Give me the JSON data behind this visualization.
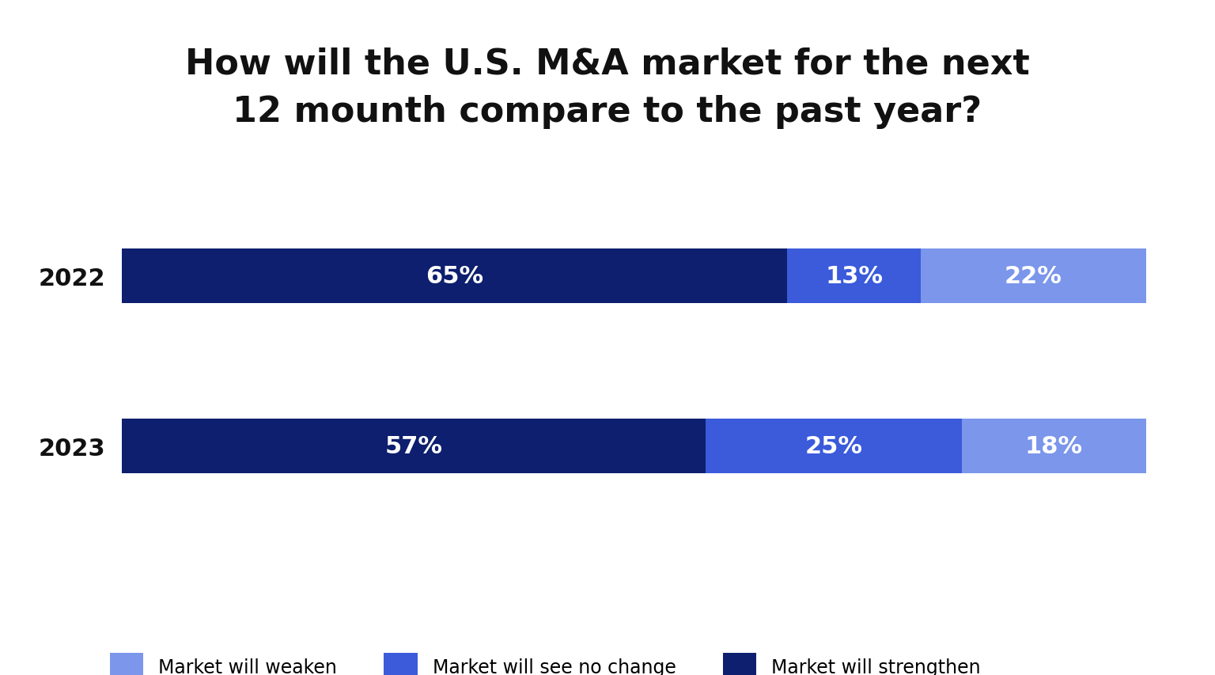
{
  "title_line1": "How will the U.S. M&A market for the next",
  "title_line2": "12 mounth compare to the past year?",
  "title_fontsize": 32,
  "title_fontweight": "bold",
  "years": [
    "2022",
    "2023"
  ],
  "segments": {
    "strengthen": [
      65,
      57
    ],
    "no_change": [
      13,
      25
    ],
    "weaken": [
      22,
      18
    ]
  },
  "colors": {
    "strengthen": "#0d1f6e",
    "no_change": "#3b5bdb",
    "weaken": "#7b96ea"
  },
  "legend_labels": {
    "weaken": "Market will weaken",
    "no_change": "Market will see no change",
    "strengthen": "Market will strengthen"
  },
  "bar_height": 0.32,
  "label_fontsize": 22,
  "label_color": "#ffffff",
  "ytick_fontsize": 22,
  "background_color": "#ffffff",
  "legend_fontsize": 17
}
